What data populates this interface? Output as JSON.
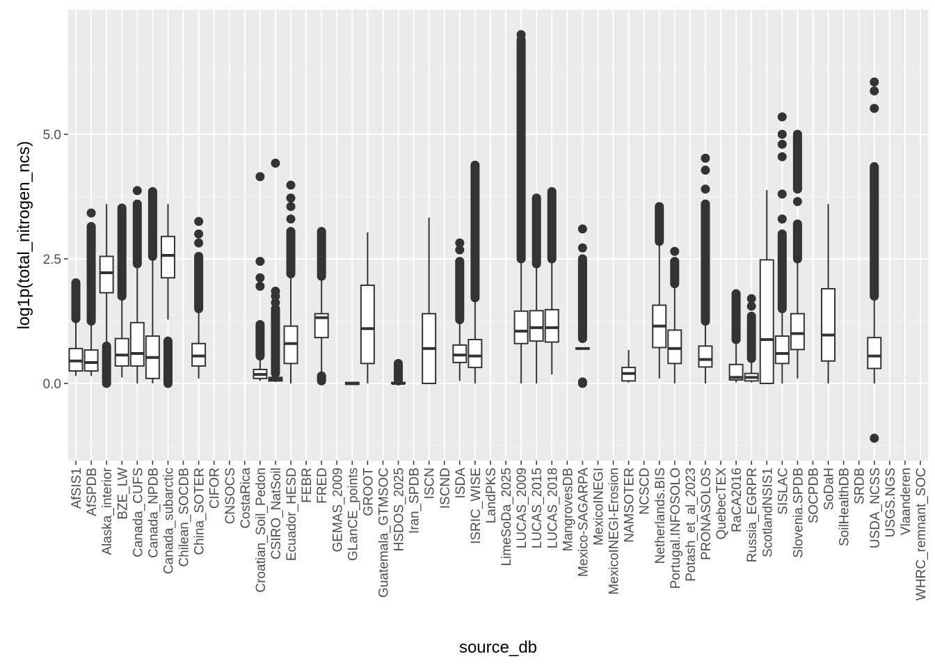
{
  "chart_data": {
    "type": "boxplot",
    "title": "",
    "xlabel": "source_db",
    "ylabel": "log1p(total_nitrogen_ncs)",
    "ylim": [
      -1.55,
      7.5
    ],
    "yticks": [
      0.0,
      2.5,
      5.0
    ],
    "ytick_labels": [
      "0.0",
      "2.5",
      "5.0"
    ],
    "categories": [
      "AfSIS1",
      "AfSPDB",
      "Alaska_interior",
      "BZE_LW",
      "Canada_CUFS",
      "Canada_NPDB",
      "Canada_subarctic",
      "Chilean_SOCDB",
      "China_SOTER",
      "CIFOR",
      "CNSOCS",
      "CostaRica",
      "Croatian_Soil_Pedon",
      "CSIRO_NatSoil",
      "Ecuador_HESD",
      "FEBR",
      "FRED",
      "GEMAS_2009",
      "GLanCE_points",
      "GROOT",
      "Guatemala_GTMSOC",
      "HSDOS_2025",
      "Iran_SPDB",
      "ISCN",
      "ISCND",
      "ISDA",
      "ISRIC_WISE",
      "LandPKS",
      "LimeSoDa_2025",
      "LUCAS_2009",
      "LUCAS_2015",
      "LUCAS_2018",
      "MangrovesDB",
      "Mexico-SAGARPA",
      "MexicoINEGI",
      "MexicoINEGI-Erosion",
      "NAMSOTER",
      "NCSCD",
      "Netherlands.BIS",
      "Portugal.INFOSOLO",
      "Potash_et_al_2023",
      "PRONASOLOS",
      "QuebecTEX",
      "RaCA2016",
      "Russia_EGRPR",
      "ScotlandNSIS1",
      "SISLAC",
      "Slovenia.SPDB",
      "SOCPDB",
      "SoDaH",
      "SoilHealthDB",
      "SRDB",
      "USDA_NCSS",
      "USGS.NGS",
      "Vlaanderen",
      "WHRC_remnant_SOC"
    ],
    "boxes": [
      {
        "i": 0,
        "wmin": 0.15,
        "q1": 0.25,
        "med": 0.45,
        "q3": 0.7,
        "wmax": 1.3,
        "outliers": [
          {
            "from": 1.3,
            "to": 2.02
          }
        ]
      },
      {
        "i": 1,
        "wmin": 0.15,
        "q1": 0.25,
        "med": 0.42,
        "q3": 0.67,
        "wmax": 1.25,
        "outliers": [
          {
            "from": 1.25,
            "to": 3.15
          },
          3.42
        ]
      },
      {
        "i": 2,
        "wmin": 0.75,
        "q1": 1.82,
        "med": 2.22,
        "q3": 2.55,
        "wmax": 3.6,
        "outliers": [
          {
            "from": 0.0,
            "to": 0.75
          }
        ]
      },
      {
        "i": 3,
        "wmin": 0.12,
        "q1": 0.35,
        "med": 0.57,
        "q3": 0.9,
        "wmax": 1.75,
        "outliers": [
          {
            "from": 1.75,
            "to": 3.52
          }
        ]
      },
      {
        "i": 4,
        "wmin": 0.0,
        "q1": 0.35,
        "med": 0.6,
        "q3": 1.22,
        "wmax": 2.4,
        "outliers": [
          {
            "from": 2.4,
            "to": 3.6
          },
          3.87
        ]
      },
      {
        "i": 5,
        "wmin": 0.0,
        "q1": 0.1,
        "med": 0.52,
        "q3": 0.95,
        "wmax": 2.55,
        "outliers": [
          {
            "from": 2.55,
            "to": 3.85
          }
        ]
      },
      {
        "i": 6,
        "wmin": 1.28,
        "q1": 2.12,
        "med": 2.57,
        "q3": 2.95,
        "wmax": 3.6,
        "outliers": [
          {
            "from": 0.0,
            "to": 0.85
          }
        ]
      },
      {
        "i": 8,
        "wmin": 0.1,
        "q1": 0.35,
        "med": 0.55,
        "q3": 0.8,
        "wmax": 1.5,
        "outliers": [
          {
            "from": 1.5,
            "to": 2.55
          },
          2.82,
          3.0,
          3.25
        ]
      },
      {
        "i": 12,
        "wmin": 0.05,
        "q1": 0.1,
        "med": 0.18,
        "q3": 0.28,
        "wmax": 0.5,
        "outliers": [
          {
            "from": 0.55,
            "to": 1.18
          },
          1.95,
          2.12,
          2.45,
          4.15
        ]
      },
      {
        "i": 13,
        "wmin": 0.03,
        "q1": 0.05,
        "med": 0.08,
        "q3": 0.12,
        "wmax": 0.2,
        "outliers": [
          {
            "from": 0.2,
            "to": 1.5
          },
          1.62,
          1.75,
          1.85,
          4.42
        ]
      },
      {
        "i": 14,
        "wmin": 0.0,
        "q1": 0.4,
        "med": 0.8,
        "q3": 1.15,
        "wmax": 2.2,
        "outliers": [
          {
            "from": 2.2,
            "to": 3.05
          },
          3.3,
          3.55,
          3.72,
          3.98
        ]
      },
      {
        "i": 16,
        "wmin": 0.2,
        "q1": 0.92,
        "med": 1.32,
        "q3": 1.4,
        "wmax": 2.15,
        "outliers": [
          {
            "from": 0.05,
            "to": 0.15
          },
          {
            "from": 2.15,
            "to": 3.05
          }
        ]
      },
      {
        "i": 18,
        "wmin": -0.03,
        "q1": -0.02,
        "med": 0.0,
        "q3": 0.02,
        "wmax": 0.03,
        "outliers": []
      },
      {
        "i": 19,
        "wmin": 0.0,
        "q1": 0.4,
        "med": 1.1,
        "q3": 1.97,
        "wmax": 3.03,
        "outliers": []
      },
      {
        "i": 21,
        "wmin": 0.0,
        "q1": 0.0,
        "med": 0.0,
        "q3": 0.02,
        "wmax": 0.05,
        "outliers": [
          {
            "from": 0.05,
            "to": 0.4
          }
        ]
      },
      {
        "i": 23,
        "wmin": 0.0,
        "q1": 0.0,
        "med": 0.7,
        "q3": 1.4,
        "wmax": 3.33,
        "outliers": []
      },
      {
        "i": 25,
        "wmin": 0.05,
        "q1": 0.42,
        "med": 0.57,
        "q3": 0.77,
        "wmax": 1.28,
        "outliers": [
          {
            "from": 1.28,
            "to": 2.45
          },
          2.68,
          2.82
        ]
      },
      {
        "i": 26,
        "wmin": 0.0,
        "q1": 0.32,
        "med": 0.55,
        "q3": 0.88,
        "wmax": 1.72,
        "outliers": [
          {
            "from": 1.72,
            "to": 4.38
          }
        ]
      },
      {
        "i": 29,
        "wmin": 0.0,
        "q1": 0.8,
        "med": 1.05,
        "q3": 1.45,
        "wmax": 2.5,
        "outliers": [
          {
            "from": 2.5,
            "to": 6.9
          },
          7.0
        ]
      },
      {
        "i": 30,
        "wmin": 0.0,
        "q1": 0.85,
        "med": 1.12,
        "q3": 1.46,
        "wmax": 2.4,
        "outliers": [
          {
            "from": 2.4,
            "to": 3.72
          }
        ]
      },
      {
        "i": 31,
        "wmin": 0.18,
        "q1": 0.83,
        "med": 1.12,
        "q3": 1.48,
        "wmax": 2.5,
        "outliers": [
          {
            "from": 2.5,
            "to": 3.85
          }
        ]
      },
      {
        "i": 33,
        "wmin": 0.7,
        "q1": 0.69,
        "med": 0.7,
        "q3": 0.71,
        "wmax": 0.7,
        "outliers": [
          {
            "from": 0.0,
            "to": 0.03
          },
          {
            "from": 0.9,
            "to": 2.5
          },
          2.72,
          3.1
        ]
      },
      {
        "i": 36,
        "wmin": 0.02,
        "q1": 0.05,
        "med": 0.2,
        "q3": 0.32,
        "wmax": 0.67,
        "outliers": []
      },
      {
        "i": 38,
        "wmin": 0.1,
        "q1": 0.72,
        "med": 1.15,
        "q3": 1.57,
        "wmax": 2.85,
        "outliers": [
          {
            "from": 2.85,
            "to": 3.55
          }
        ]
      },
      {
        "i": 39,
        "wmin": 0.0,
        "q1": 0.4,
        "med": 0.7,
        "q3": 1.07,
        "wmax": 2.0,
        "outliers": [
          {
            "from": 2.0,
            "to": 2.45
          },
          2.65
        ]
      },
      {
        "i": 41,
        "wmin": 0.0,
        "q1": 0.33,
        "med": 0.48,
        "q3": 0.75,
        "wmax": 1.25,
        "outliers": [
          {
            "from": 1.25,
            "to": 3.6
          },
          3.9,
          4.28,
          4.52
        ]
      },
      {
        "i": 43,
        "wmin": 0.02,
        "q1": 0.07,
        "med": 0.12,
        "q3": 0.38,
        "wmax": 0.88,
        "outliers": [
          {
            "from": 0.88,
            "to": 1.8
          }
        ]
      },
      {
        "i": 44,
        "wmin": 0.02,
        "q1": 0.05,
        "med": 0.12,
        "q3": 0.2,
        "wmax": 0.5,
        "outliers": [
          {
            "from": 0.5,
            "to": 1.35
          },
          1.55,
          1.7
        ]
      },
      {
        "i": 45,
        "wmin": 0.0,
        "q1": 0.0,
        "med": 0.88,
        "q3": 2.48,
        "wmax": 3.88,
        "outliers": []
      },
      {
        "i": 46,
        "wmin": 0.0,
        "q1": 0.4,
        "med": 0.6,
        "q3": 0.95,
        "wmax": 1.5,
        "outliers": [
          {
            "from": 1.5,
            "to": 3.0
          },
          3.3,
          3.8,
          4.55,
          4.8,
          5.0,
          5.35
        ]
      },
      {
        "i": 47,
        "wmin": 0.1,
        "q1": 0.68,
        "med": 1.0,
        "q3": 1.4,
        "wmax": 2.5,
        "outliers": [
          {
            "from": 2.5,
            "to": 3.2
          },
          3.65,
          {
            "from": 3.9,
            "to": 5.0
          }
        ]
      },
      {
        "i": 49,
        "wmin": 0.0,
        "q1": 0.45,
        "med": 0.97,
        "q3": 1.9,
        "wmax": 3.6,
        "outliers": []
      },
      {
        "i": 52,
        "wmin": 0.0,
        "q1": 0.3,
        "med": 0.55,
        "q3": 0.92,
        "wmax": 1.75,
        "outliers": [
          {
            "from": 1.75,
            "to": 4.35
          },
          5.52,
          5.87,
          6.05,
          -1.1
        ]
      }
    ]
  }
}
